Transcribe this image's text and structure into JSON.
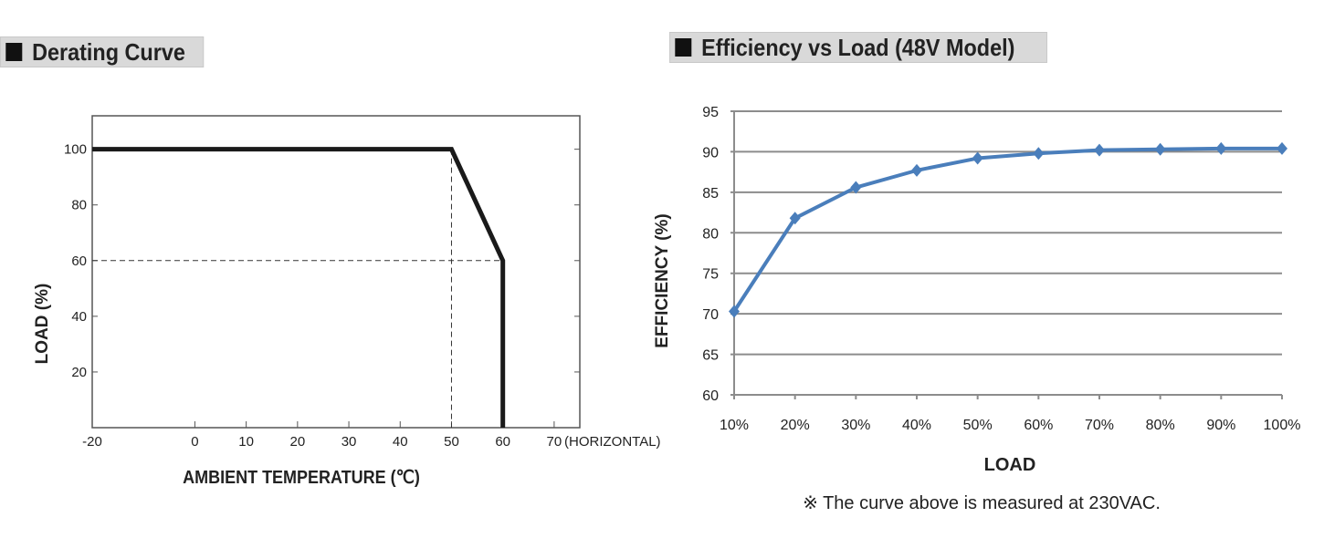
{
  "chart_data": [
    {
      "type": "line",
      "title": "Derating Curve",
      "xlabel": "AMBIENT TEMPERATURE (℃)",
      "ylabel": "LOAD (%)",
      "x_ticks": [
        "-20",
        "0",
        "10",
        "20",
        "30",
        "40",
        "50",
        "60",
        "70"
      ],
      "x_note": "(HORIZONTAL)",
      "y_ticks": [
        "20",
        "40",
        "60",
        "80",
        "100"
      ],
      "xlim": [
        -20,
        75
      ],
      "ylim": [
        0,
        112
      ],
      "grid": false,
      "series": [
        {
          "x": [
            -20,
            50,
            60,
            60
          ],
          "y": [
            100,
            100,
            60,
            0
          ],
          "color": "#1a1a1a"
        }
      ],
      "reference_lines": [
        {
          "x": 50,
          "y": 100
        },
        {
          "x": 60,
          "y": 60
        }
      ]
    },
    {
      "type": "line",
      "title": "Efficiency vs Load (48V Model)",
      "xlabel": "LOAD",
      "ylabel": "EFFICIENCY (%)",
      "categories": [
        "10%",
        "20%",
        "30%",
        "40%",
        "50%",
        "60%",
        "70%",
        "80%",
        "90%",
        "100%"
      ],
      "y_ticks": [
        "60",
        "65",
        "70",
        "75",
        "80",
        "85",
        "90",
        "95"
      ],
      "ylim": [
        60,
        95
      ],
      "grid": true,
      "series": [
        {
          "values": [
            70.3,
            81.8,
            85.6,
            87.7,
            89.2,
            89.8,
            90.2,
            90.3,
            90.4,
            90.4
          ],
          "color": "#4a7ebb",
          "marker": "diamond"
        }
      ],
      "note": "※ The curve above is measured at 230VAC."
    }
  ]
}
